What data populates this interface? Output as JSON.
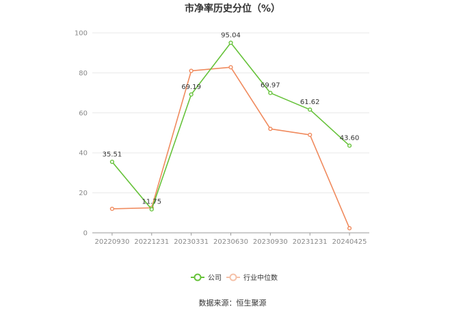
{
  "chart_data": {
    "type": "line",
    "title": "市净率历史分位（%）",
    "categories": [
      "20220930",
      "20221231",
      "20230331",
      "20230630",
      "20230930",
      "20231231",
      "20240425"
    ],
    "ylim": [
      0,
      100
    ],
    "yticks": [
      0,
      20,
      40,
      60,
      80,
      100
    ],
    "grid": true,
    "legend_position": "bottom",
    "series": [
      {
        "name": "公司",
        "color": "#66c23a",
        "values": [
          35.51,
          11.75,
          69.19,
          95.04,
          69.97,
          61.62,
          43.6
        ],
        "labels": [
          "35.51",
          "11.75",
          "69.19",
          "95.04",
          "69.97",
          "61.62",
          "43.60"
        ]
      },
      {
        "name": "行业中位数",
        "color": "#f08a5d",
        "values": [
          12.0,
          12.5,
          81.0,
          82.8,
          52.0,
          49.0,
          2.3
        ]
      }
    ],
    "source": "数据来源：恒生聚源"
  }
}
